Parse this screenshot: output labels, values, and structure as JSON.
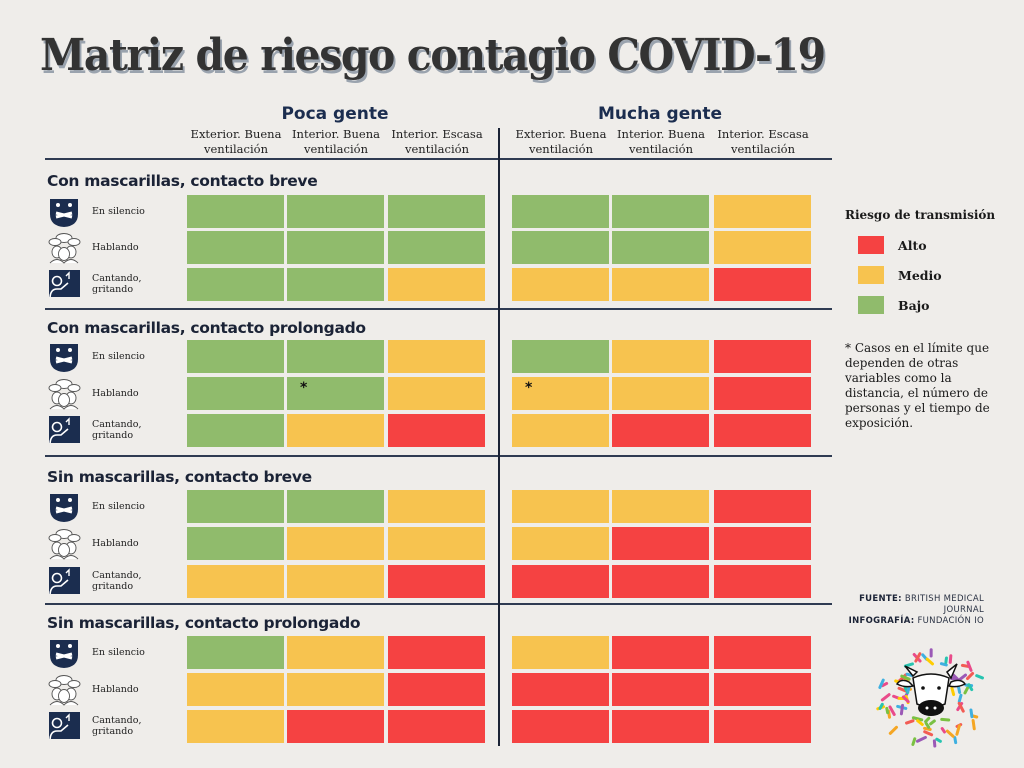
{
  "title": "Matriz de riesgo contagio COVID-19",
  "chart_data": {
    "type": "heatmap",
    "title": "Matriz de riesgo contagio COVID-19",
    "column_groups": [
      {
        "name": "Poca gente",
        "columns": [
          "Exterior. Buena ventilación",
          "Interior. Buena ventilación",
          "Interior. Escasa ventilación"
        ]
      },
      {
        "name": "Mucha gente",
        "columns": [
          "Exterior. Buena ventilación",
          "Interior. Buena ventilación",
          "Interior. Escasa ventilación"
        ]
      }
    ],
    "column_headers": [
      [
        "Exterior. Buena",
        "ventilación"
      ],
      [
        "Interior. Buena",
        "ventilación"
      ],
      [
        "Interior. Escasa",
        "ventilación"
      ],
      [
        "Exterior. Buena",
        "ventilación"
      ],
      [
        "Interior. Buena",
        "ventilación"
      ],
      [
        "Interior. Escasa",
        "ventilación"
      ]
    ],
    "levels": {
      "alto": {
        "label": "Alto",
        "color": "#f54242"
      },
      "medio": {
        "label": "Medio",
        "color": "#f7c34f"
      },
      "bajo": {
        "label": "Bajo",
        "color": "#90bb6c"
      }
    },
    "sections": [
      {
        "title": "Con mascarillas, contacto breve",
        "rows": [
          {
            "activity": "En silencio",
            "icon": "silence-face-icon",
            "values": [
              "bajo",
              "bajo",
              "bajo",
              "bajo",
              "bajo",
              "medio"
            ]
          },
          {
            "activity": "Hablando",
            "icon": "talking-people-icon",
            "values": [
              "bajo",
              "bajo",
              "bajo",
              "bajo",
              "bajo",
              "medio"
            ]
          },
          {
            "activity": "Cantando, gritando",
            "icon": "singing-person-icon",
            "values": [
              "bajo",
              "bajo",
              "medio",
              "medio",
              "medio",
              "alto"
            ]
          }
        ]
      },
      {
        "title": "Con mascarillas, contacto prolongado",
        "rows": [
          {
            "activity": "En silencio",
            "icon": "silence-face-icon",
            "values": [
              "bajo",
              "bajo",
              "medio",
              "bajo",
              "medio",
              "alto"
            ]
          },
          {
            "activity": "Hablando",
            "icon": "talking-people-icon",
            "values": [
              "bajo",
              "bajo",
              "medio",
              "medio",
              "medio",
              "alto"
            ],
            "borderline": [
              1,
              3
            ]
          },
          {
            "activity": "Cantando, gritando",
            "icon": "singing-person-icon",
            "values": [
              "bajo",
              "medio",
              "alto",
              "medio",
              "alto",
              "alto"
            ]
          }
        ]
      },
      {
        "title": "Sin mascarillas, contacto breve",
        "rows": [
          {
            "activity": "En silencio",
            "icon": "silence-face-icon",
            "values": [
              "bajo",
              "bajo",
              "medio",
              "medio",
              "medio",
              "alto"
            ]
          },
          {
            "activity": "Hablando",
            "icon": "talking-people-icon",
            "values": [
              "bajo",
              "medio",
              "medio",
              "medio",
              "alto",
              "alto"
            ]
          },
          {
            "activity": "Cantando, gritando",
            "icon": "singing-person-icon",
            "values": [
              "medio",
              "medio",
              "alto",
              "alto",
              "alto",
              "alto"
            ]
          }
        ]
      },
      {
        "title": "Sin mascarillas, contacto prolongado",
        "rows": [
          {
            "activity": "En silencio",
            "icon": "silence-face-icon",
            "values": [
              "bajo",
              "medio",
              "alto",
              "medio",
              "alto",
              "alto"
            ]
          },
          {
            "activity": "Hablando",
            "icon": "talking-people-icon",
            "values": [
              "medio",
              "medio",
              "alto",
              "alto",
              "alto",
              "alto"
            ]
          },
          {
            "activity": "Cantando, gritando",
            "icon": "singing-person-icon",
            "values": [
              "medio",
              "alto",
              "alto",
              "alto",
              "alto",
              "alto"
            ]
          }
        ]
      }
    ],
    "borderline_marker": "*",
    "legend": {
      "title": "Riesgo de transmisión",
      "placement": "right",
      "items": [
        {
          "key": "alto",
          "label": "Alto"
        },
        {
          "key": "medio",
          "label": "Medio"
        },
        {
          "key": "bajo",
          "label": "Bajo"
        }
      ]
    }
  },
  "note": "* Casos en el límite que dependen de otras variables como la distancia, el número de personas y el tiempo de exposición.",
  "credits": {
    "source_label": "FUENTE:",
    "source_value_line1": "BRITISH MEDICAL",
    "source_value_line2": "JOURNAL",
    "infographic_label": "INFOGRAFÍA:",
    "infographic_value": "FUNDACIÓN IO"
  },
  "logo": {
    "icon": "fundacion-io-cow-logo"
  }
}
